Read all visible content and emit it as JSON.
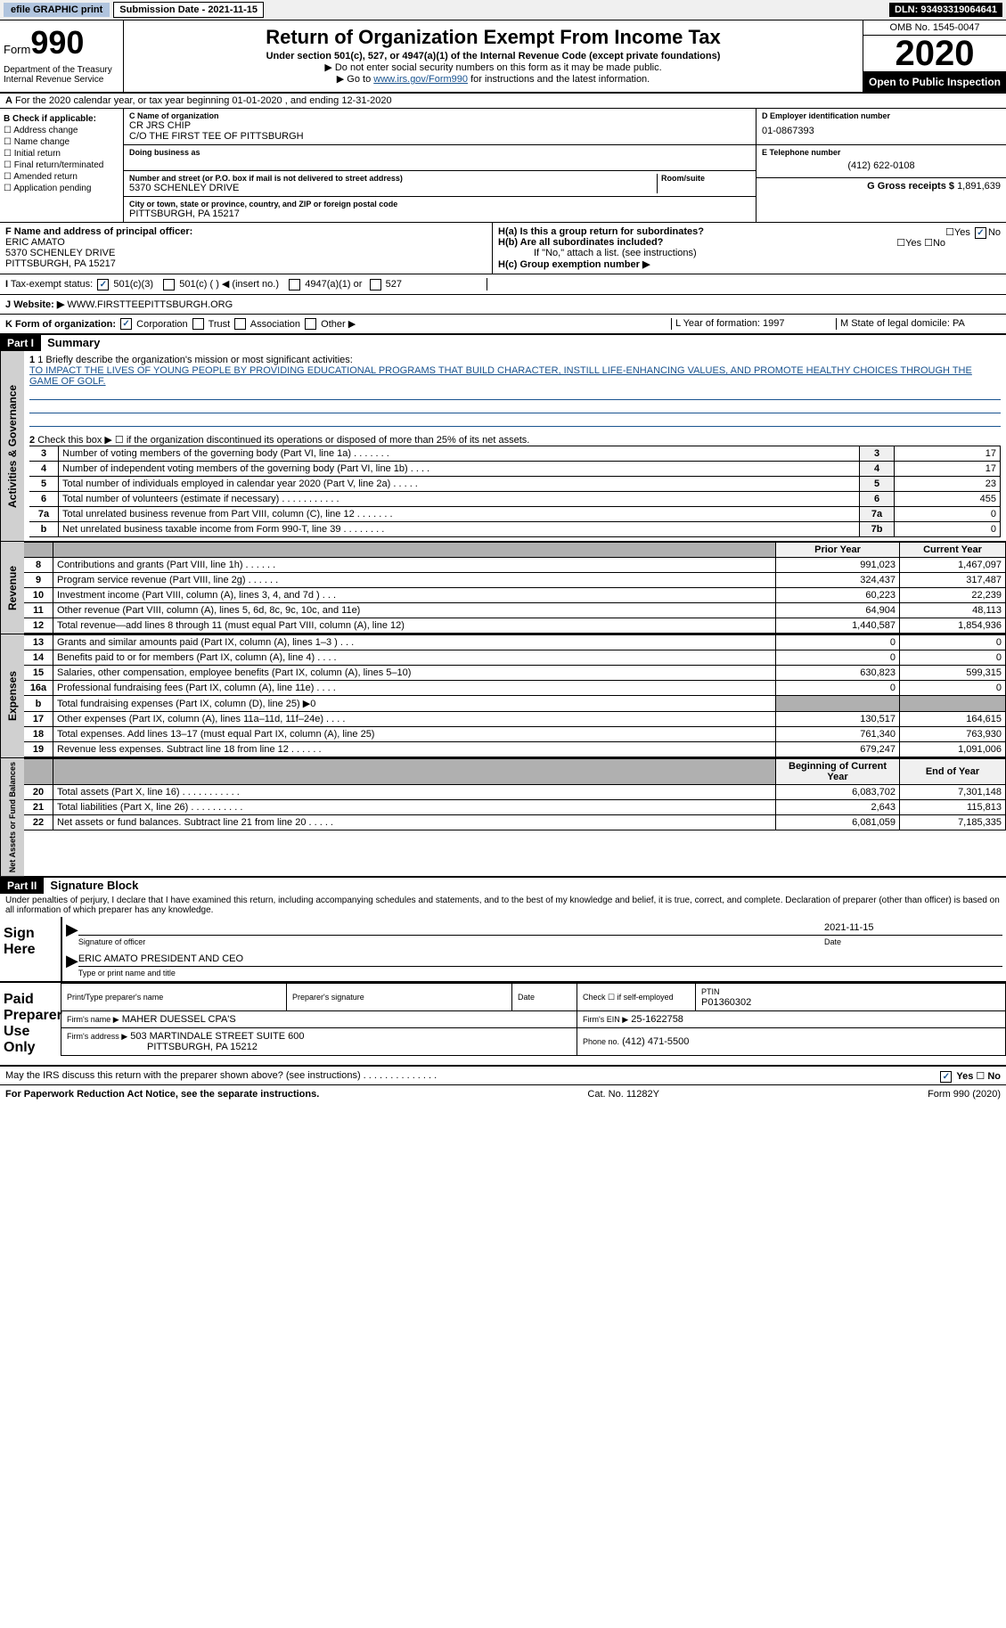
{
  "topbar": {
    "efile": "efile GRAPHIC print",
    "sub_date_label": "Submission Date - 2021-11-15",
    "dln": "DLN: 93493319064641"
  },
  "header": {
    "form_label": "Form",
    "form_num": "990",
    "dept": "Department of the Treasury\nInternal Revenue Service",
    "title": "Return of Organization Exempt From Income Tax",
    "subtitle": "Under section 501(c), 527, or 4947(a)(1) of the Internal Revenue Code (except private foundations)",
    "note1": "▶ Do not enter social security numbers on this form as it may be made public.",
    "note2_pre": "▶ Go to ",
    "note2_link": "www.irs.gov/Form990",
    "note2_post": " for instructions and the latest information.",
    "omb": "OMB No. 1545-0047",
    "year": "2020",
    "inspection": "Open to Public Inspection"
  },
  "lineA": "For the 2020 calendar year, or tax year beginning 01-01-2020   , and ending 12-31-2020",
  "boxB": {
    "title": "B Check if applicable:",
    "items": [
      "Address change",
      "Name change",
      "Initial return",
      "Final return/terminated",
      "Amended return",
      "Application pending"
    ]
  },
  "boxC": {
    "name_label": "C Name of organization",
    "name1": "CR JRS CHIP",
    "name2": "C/O THE FIRST TEE OF PITTSBURGH",
    "dba_label": "Doing business as",
    "street_label": "Number and street (or P.O. box if mail is not delivered to street address)",
    "street": "5370 SCHENLEY DRIVE",
    "room_label": "Room/suite",
    "city_label": "City or town, state or province, country, and ZIP or foreign postal code",
    "city": "PITTSBURGH, PA  15217"
  },
  "boxD": {
    "label": "D Employer identification number",
    "value": "01-0867393"
  },
  "boxE": {
    "label": "E Telephone number",
    "value": "(412) 622-0108"
  },
  "boxG": {
    "label": "G Gross receipts $",
    "value": "1,891,639"
  },
  "boxF": {
    "label": "F  Name and address of principal officer:",
    "name": "ERIC AMATO",
    "addr1": "5370 SCHENLEY DRIVE",
    "addr2": "PITTSBURGH, PA  15217"
  },
  "boxH": {
    "ha": "H(a)  Is this a group return for subordinates?",
    "hb": "H(b)  Are all subordinates included?",
    "hb_note": "If \"No,\" attach a list. (see instructions)",
    "hc": "H(c)  Group exemption number ▶"
  },
  "taxExempt": {
    "label": "Tax-exempt status:",
    "opt1": "501(c)(3)",
    "opt2": "501(c) (  ) ◀ (insert no.)",
    "opt3": "4947(a)(1) or",
    "opt4": "527"
  },
  "boxJ": {
    "label": "Website: ▶",
    "value": "WWW.FIRSTTEEPITTSBURGH.ORG"
  },
  "boxK": {
    "label": "K Form of organization:",
    "corp": "Corporation",
    "trust": "Trust",
    "assoc": "Association",
    "other": "Other ▶"
  },
  "boxL": "L Year of formation: 1997",
  "boxM": "M State of legal domicile: PA",
  "part1": {
    "header": "Part I",
    "title": "Summary",
    "q1_label": "1  Briefly describe the organization's mission or most significant activities:",
    "mission": "TO IMPACT THE LIVES OF YOUNG PEOPLE BY PROVIDING EDUCATIONAL PROGRAMS THAT BUILD CHARACTER, INSTILL LIFE-ENHANCING VALUES, AND PROMOTE HEALTHY CHOICES THROUGH THE GAME OF GOLF.",
    "q2": "Check this box ▶ ☐  if the organization discontinued its operations or disposed of more than 25% of its net assets.",
    "vtab1": "Activities & Governance",
    "vtab2": "Revenue",
    "vtab3": "Expenses",
    "vtab4": "Net Assets or Fund Balances",
    "gov_lines": [
      {
        "n": "3",
        "desc": "Number of voting members of the governing body (Part VI, line 1a)   .    .    .    .    .    .    .",
        "box": "3",
        "val": "17"
      },
      {
        "n": "4",
        "desc": "Number of independent voting members of the governing body (Part VI, line 1b)    .    .    .    .",
        "box": "4",
        "val": "17"
      },
      {
        "n": "5",
        "desc": "Total number of individuals employed in calendar year 2020 (Part V, line 2a)   .    .    .    .    .",
        "box": "5",
        "val": "23"
      },
      {
        "n": "6",
        "desc": "Total number of volunteers (estimate if necessary)   .    .    .    .    .    .    .    .    .    .    .",
        "box": "6",
        "val": "455"
      },
      {
        "n": "7a",
        "desc": "Total unrelated business revenue from Part VIII, column (C), line 12   .    .    .    .    .    .    .",
        "box": "7a",
        "val": "0"
      },
      {
        "n": "b",
        "desc": "Net unrelated business taxable income from Form 990-T, line 39   .    .    .    .    .    .    .    .",
        "box": "7b",
        "val": "0"
      }
    ],
    "prior_hdr": "Prior Year",
    "current_hdr": "Current Year",
    "rev_lines": [
      {
        "n": "8",
        "desc": "Contributions and grants (Part VIII, line 1h)   .    .    .    .    .    .",
        "prior": "991,023",
        "cur": "1,467,097"
      },
      {
        "n": "9",
        "desc": "Program service revenue (Part VIII, line 2g)    .    .    .    .    .    .",
        "prior": "324,437",
        "cur": "317,487"
      },
      {
        "n": "10",
        "desc": "Investment income (Part VIII, column (A), lines 3, 4, and 7d )   .    .    .",
        "prior": "60,223",
        "cur": "22,239"
      },
      {
        "n": "11",
        "desc": "Other revenue (Part VIII, column (A), lines 5, 6d, 8c, 9c, 10c, and 11e)",
        "prior": "64,904",
        "cur": "48,113"
      },
      {
        "n": "12",
        "desc": "Total revenue—add lines 8 through 11 (must equal Part VIII, column (A), line 12)",
        "prior": "1,440,587",
        "cur": "1,854,936"
      }
    ],
    "exp_lines": [
      {
        "n": "13",
        "desc": "Grants and similar amounts paid (Part IX, column (A), lines 1–3 )  .    .    .",
        "prior": "0",
        "cur": "0"
      },
      {
        "n": "14",
        "desc": "Benefits paid to or for members (Part IX, column (A), line 4)   .    .    .    .",
        "prior": "0",
        "cur": "0"
      },
      {
        "n": "15",
        "desc": "Salaries, other compensation, employee benefits (Part IX, column (A), lines 5–10)",
        "prior": "630,823",
        "cur": "599,315"
      },
      {
        "n": "16a",
        "desc": "Professional fundraising fees (Part IX, column (A), line 11e)   .    .    .    .",
        "prior": "0",
        "cur": "0"
      },
      {
        "n": "b",
        "desc": "Total fundraising expenses (Part IX, column (D), line 25) ▶0",
        "prior": "",
        "cur": "",
        "grey": true
      },
      {
        "n": "17",
        "desc": "Other expenses (Part IX, column (A), lines 11a–11d, 11f–24e)   .    .    .    .",
        "prior": "130,517",
        "cur": "164,615"
      },
      {
        "n": "18",
        "desc": "Total expenses. Add lines 13–17 (must equal Part IX, column (A), line 25)",
        "prior": "761,340",
        "cur": "763,930"
      },
      {
        "n": "19",
        "desc": "Revenue less expenses. Subtract line 18 from line 12 .    .    .    .    .    .",
        "prior": "679,247",
        "cur": "1,091,006"
      }
    ],
    "begin_hdr": "Beginning of Current Year",
    "end_hdr": "End of Year",
    "net_lines": [
      {
        "n": "20",
        "desc": "Total assets (Part X, line 16)  .    .    .    .    .    .    .    .    .    .    .",
        "prior": "6,083,702",
        "cur": "7,301,148"
      },
      {
        "n": "21",
        "desc": "Total liabilities (Part X, line 26)  .    .    .    .    .    .    .    .    .    .",
        "prior": "2,643",
        "cur": "115,813"
      },
      {
        "n": "22",
        "desc": "Net assets or fund balances. Subtract line 21 from line 20  .    .    .    .    .",
        "prior": "6,081,059",
        "cur": "7,185,335"
      }
    ]
  },
  "part2": {
    "header": "Part II",
    "title": "Signature Block",
    "penalty": "Under penalties of perjury, I declare that I have examined this return, including accompanying schedules and statements, and to the best of my knowledge and belief, it is true, correct, and complete. Declaration of preparer (other than officer) is based on all information of which preparer has any knowledge.",
    "sign_here": "Sign Here",
    "sig_officer": "Signature of officer",
    "sig_date": "2021-11-15",
    "date_label": "Date",
    "officer_name": "ERIC AMATO  PRESIDENT AND CEO",
    "type_name": "Type or print name and title",
    "paid": "Paid Preparer Use Only",
    "prep_name_label": "Print/Type preparer's name",
    "prep_sig_label": "Preparer's signature",
    "prep_date_label": "Date",
    "self_emp": "Check ☐ if self-employed",
    "ptin_label": "PTIN",
    "ptin": "P01360302",
    "firm_name_label": "Firm's name   ▶",
    "firm_name": "MAHER DUESSEL CPA'S",
    "firm_ein_label": "Firm's EIN ▶",
    "firm_ein": "25-1622758",
    "firm_addr_label": "Firm's address ▶",
    "firm_addr1": "503 MARTINDALE STREET SUITE 600",
    "firm_addr2": "PITTSBURGH, PA  15212",
    "phone_label": "Phone no.",
    "phone": "(412) 471-5500",
    "discuss": "May the IRS discuss this return with the preparer shown above? (see instructions)   .    .    .    .    .    .    .    .    .    .    .    .    .    ."
  },
  "footer": {
    "left": "For Paperwork Reduction Act Notice, see the separate instructions.",
    "center": "Cat. No. 11282Y",
    "right": "Form 990 (2020)"
  }
}
